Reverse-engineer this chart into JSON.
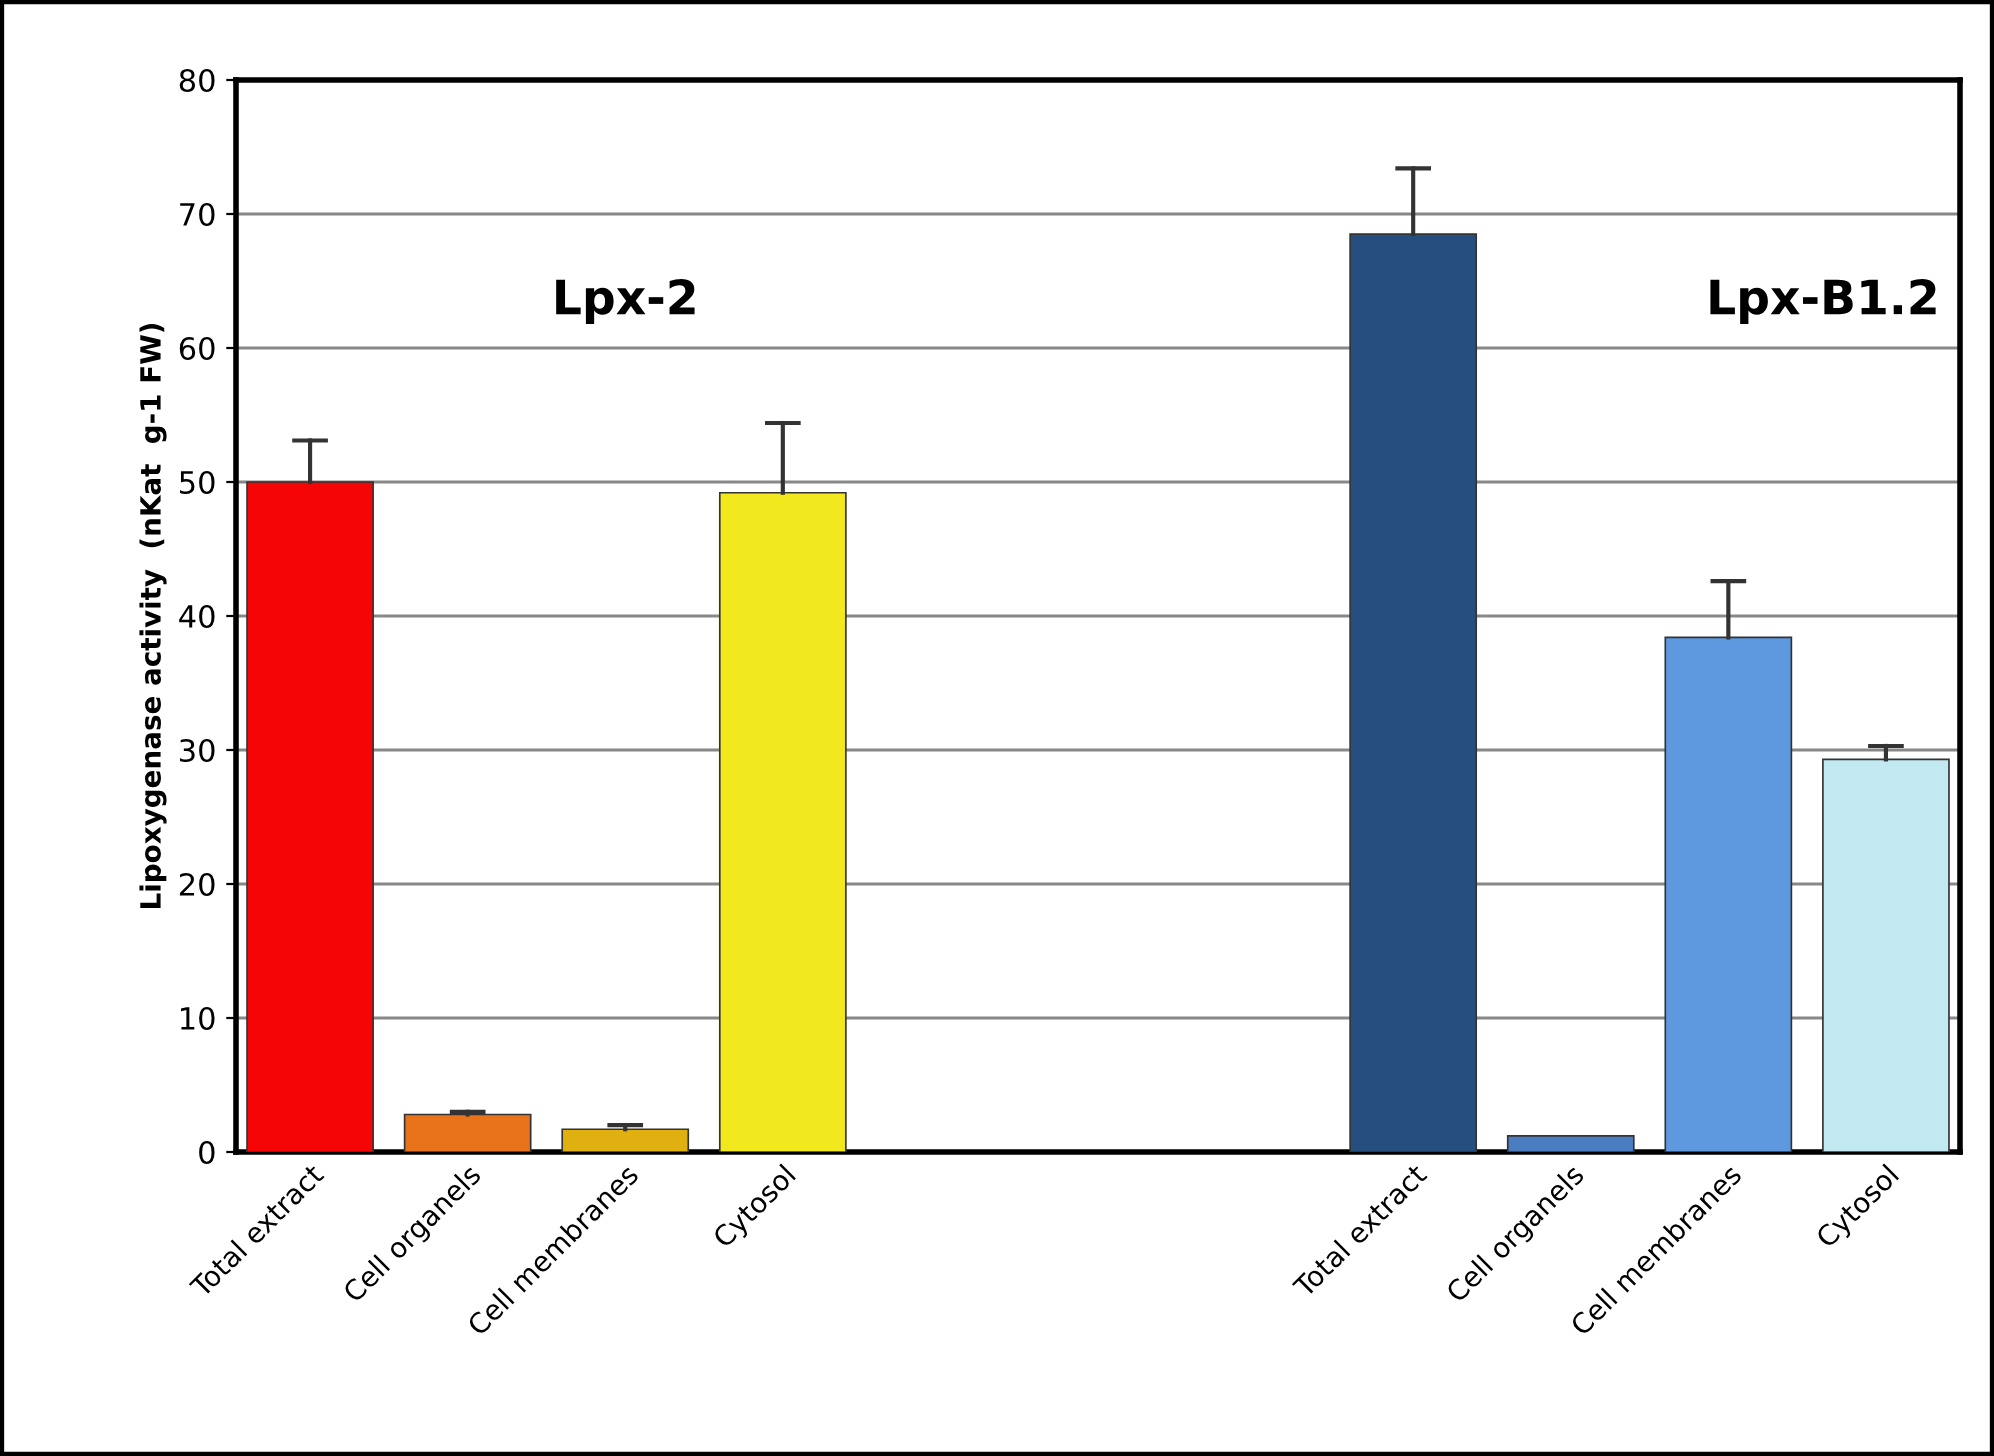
{
  "chart_data": {
    "type": "bar",
    "ylabel": "Lipoxygenase activity  (nKat  g-1 FW)",
    "categories": [
      "Total extract",
      "Cell organels",
      "Cell membranes",
      "Cytosol",
      null,
      null,
      null,
      "Total extract",
      "Cell organels",
      "Cell membranes",
      "Cytosol"
    ],
    "values": [
      50,
      2.8,
      1.7,
      49.2,
      null,
      null,
      null,
      68.5,
      1.2,
      38.4,
      29.3
    ],
    "colors": [
      "#f50505",
      "#e8731a",
      "#e0b010",
      "#f2e81e",
      null,
      null,
      null,
      "#264f80",
      "#4a7cc0",
      "#5e98de",
      "#c2e8f2"
    ],
    "errors": [
      [
        50,
        53.1
      ],
      [
        2.8,
        3.0
      ],
      [
        1.7,
        2.0
      ],
      [
        49.2,
        54.4
      ],
      null,
      null,
      null,
      [
        68.5,
        73.4
      ],
      null,
      [
        38.4,
        42.6
      ],
      [
        29.3,
        30.3
      ]
    ],
    "annotations": [
      "Lpx-2",
      "Lpx-B1.2"
    ],
    "ylim": [
      0,
      80
    ],
    "yticks": [
      0,
      10,
      20,
      30,
      40,
      50,
      60,
      70,
      80
    ],
    "grid": "y"
  }
}
